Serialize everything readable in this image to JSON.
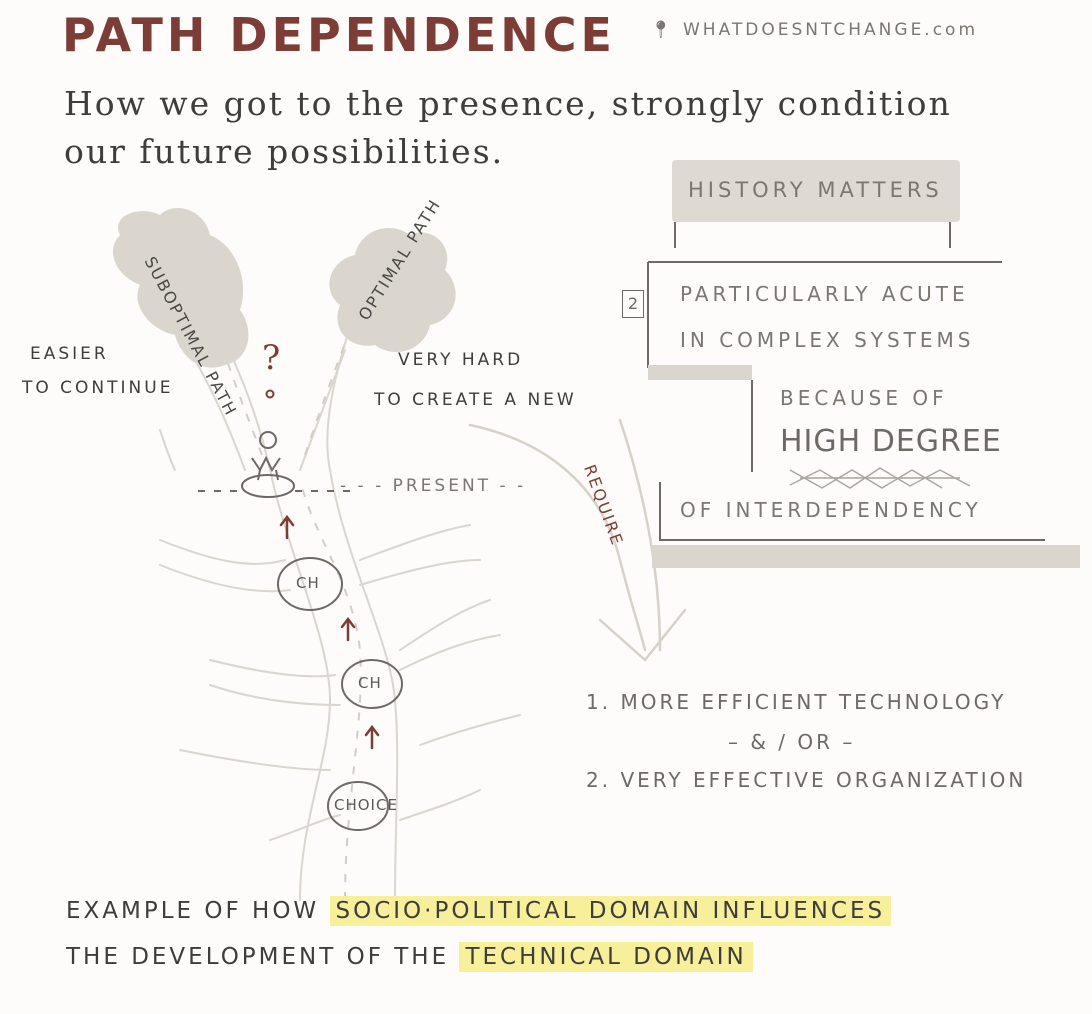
{
  "header": {
    "title": "PATH DEPENDENCE",
    "site": "WHATDOESNTCHANGE.com",
    "subtitle": "How we got to the presence, strongly condition our future possibilities."
  },
  "tree": {
    "suboptimal_path": "SUBOPTIMAL PATH",
    "optimal_path": "OPTIMAL PATH",
    "easier_line1": "EASIER",
    "easier_line2": "TO CONTINUE",
    "very_hard_line1": "VERY HARD",
    "very_hard_line2": "TO CREATE A NEW",
    "question_mark": "?",
    "present_label": "- - - PRESENT - -",
    "choice_nodes": [
      "CH",
      "CH",
      "CHOICE"
    ],
    "require_label": "REQUIRE"
  },
  "history_box": {
    "title": "HISTORY MATTERS",
    "number": "2",
    "line1": "PARTICULARLY ACUTE",
    "line2": "IN COMPLEX SYSTEMS",
    "line3": "BECAUSE OF",
    "line4": "HIGH DEGREE",
    "line5": "OF INTERDEPENDENCY"
  },
  "requirements": {
    "item1": "1. MORE EFFICIENT TECHNOLOGY",
    "separator": "– & / OR –",
    "item2": "2. VERY EFFECTIVE ORGANIZATION"
  },
  "footer": {
    "line1_prefix": "EXAMPLE OF HOW",
    "line1_highlight": "SOCIO·POLITICAL DOMAIN INFLUENCES",
    "line2_prefix": "THE DEVELOPMENT OF THE",
    "line2_highlight": "TECHNICAL DOMAIN"
  },
  "colors": {
    "title": "#7d3d37",
    "ink": "#3f3d3a",
    "grey_fill": "#dedad2",
    "highlight": "#f7ef9a",
    "arrow": "#7d3d37"
  }
}
